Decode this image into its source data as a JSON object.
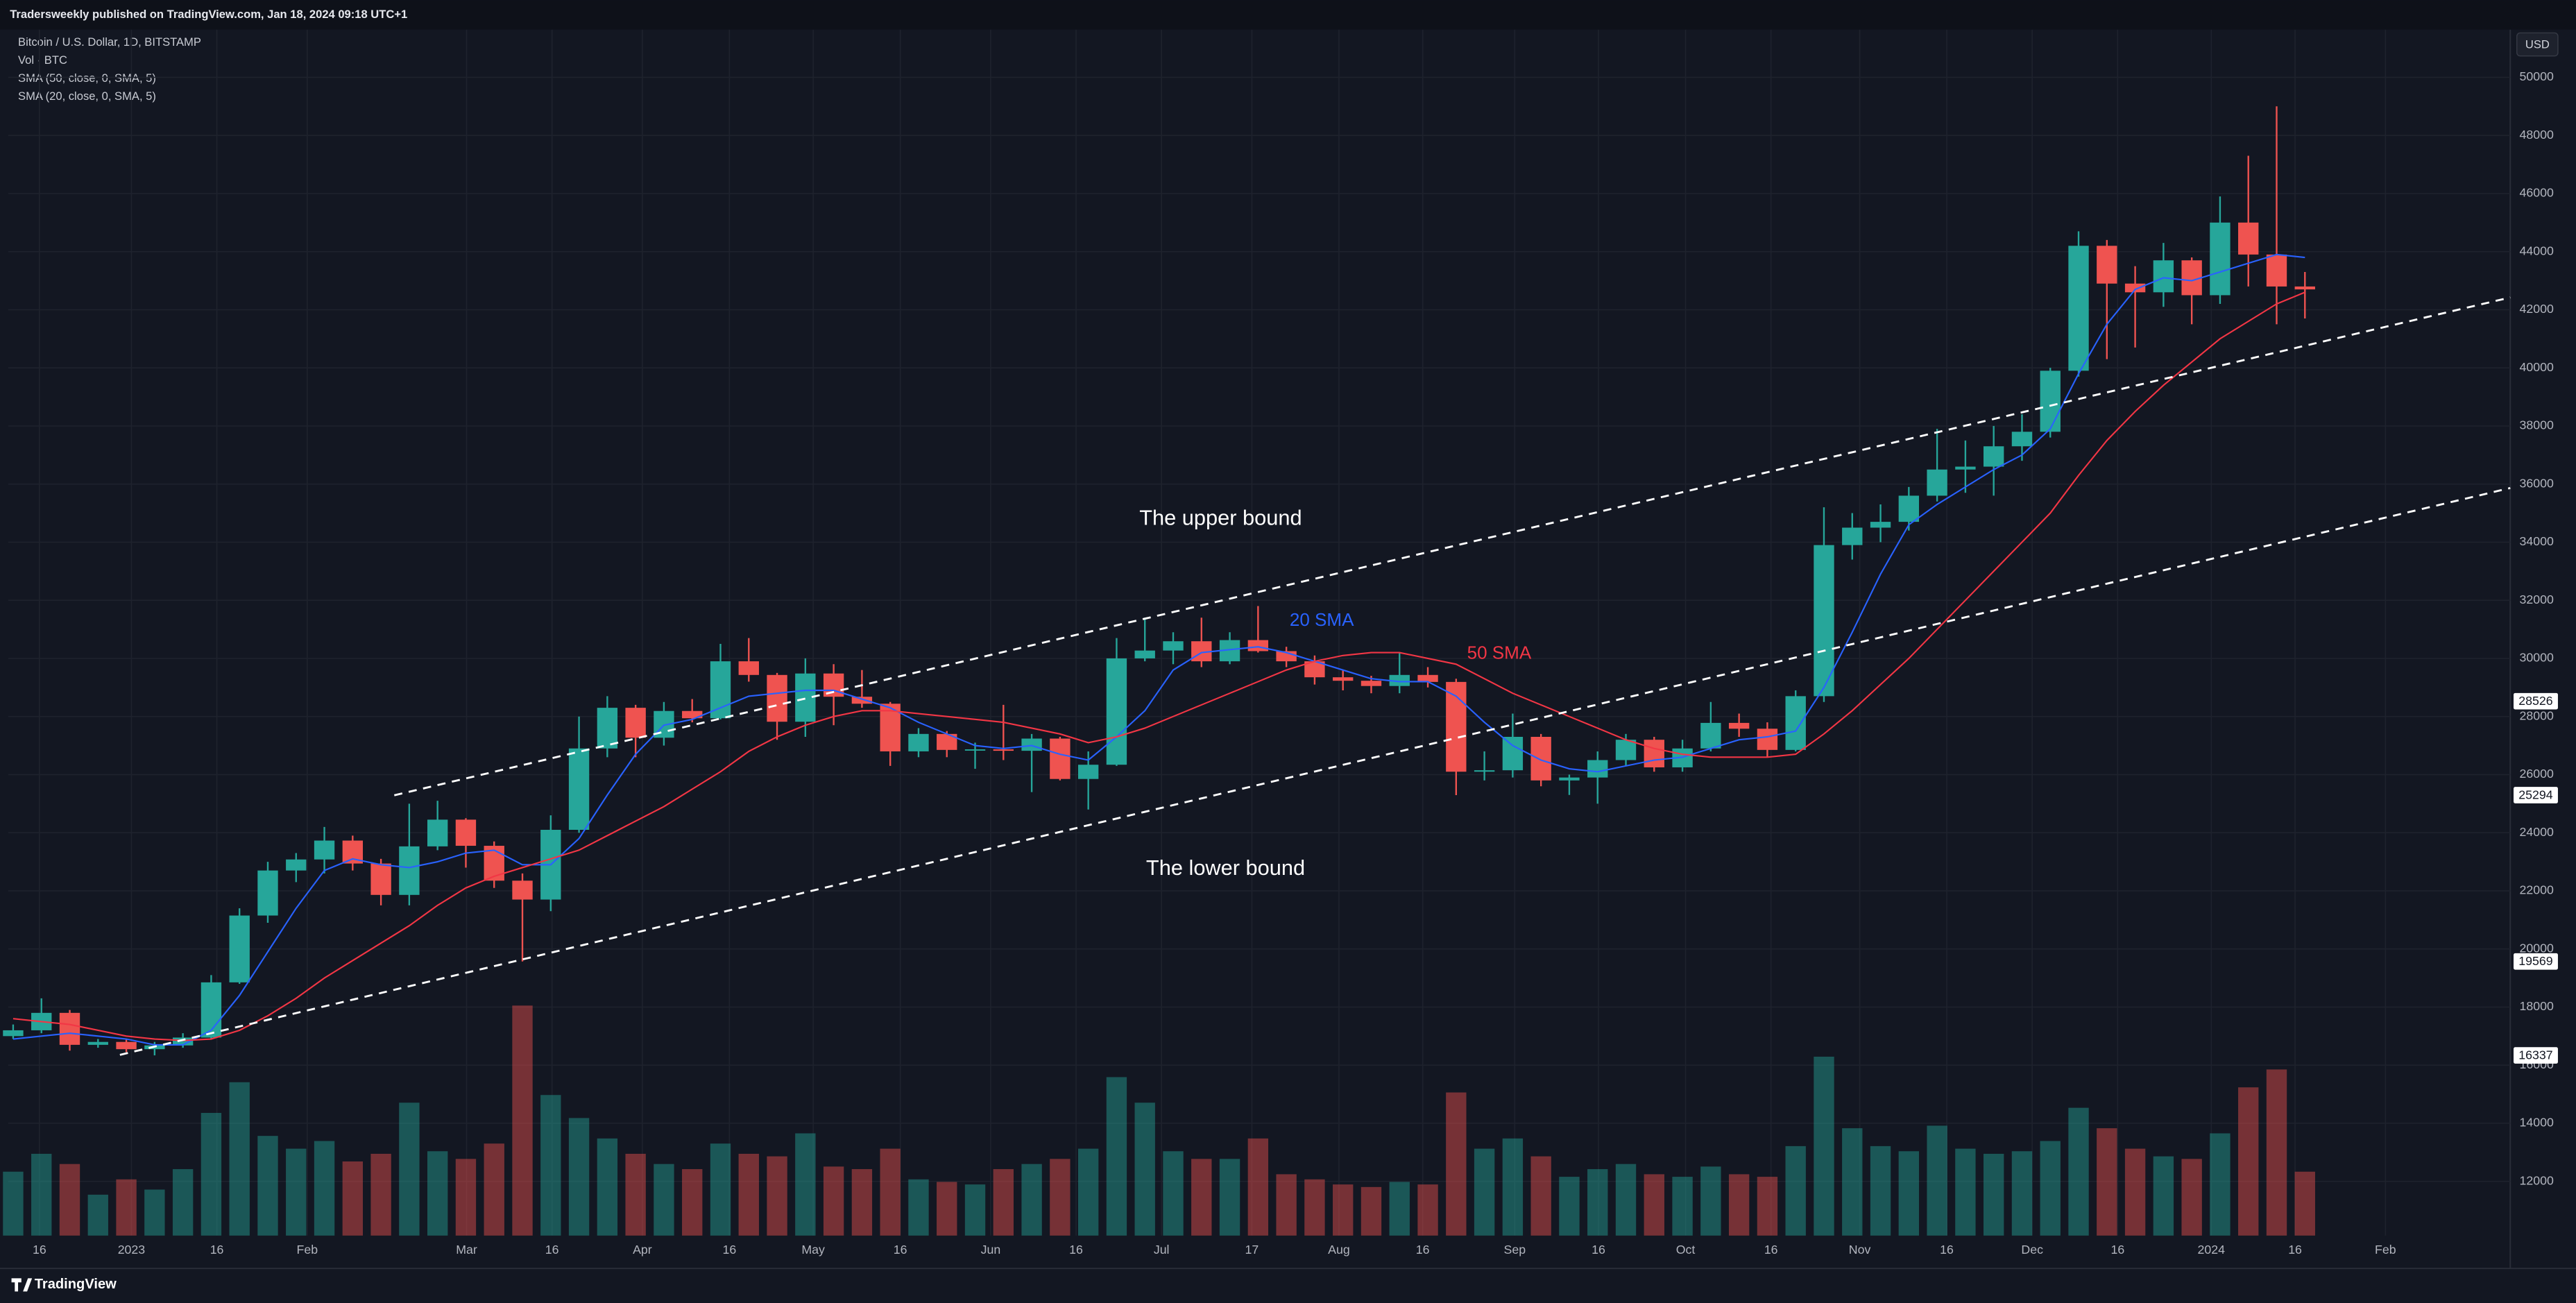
{
  "header": {
    "publisher": "Tradersweekly published on TradingView.com, Jan 18, 2024 09:18 UTC+1",
    "symbol": "Bitcoin / U.S. Dollar, 1D, BITSTAMP",
    "indicators": [
      "Vol · BTC",
      "SMA (50, close, 0, SMA, 5)",
      "SMA (20, close, 0, SMA, 5)"
    ]
  },
  "currency": "USD",
  "footer": "TradingView",
  "chart_data": {
    "type": "candlestick",
    "open": [
      17000,
      17200,
      17800,
      16700,
      16800,
      16550,
      16680,
      16950,
      18850,
      21150,
      22700,
      23080,
      23730,
      22940,
      21860,
      23530,
      24450,
      23550,
      22350,
      21700,
      24100,
      26900,
      28300,
      27270,
      28190,
      27940,
      29900,
      29430,
      27820,
      29480,
      28680,
      28440,
      26800,
      27400,
      26850,
      26870,
      26820,
      27240,
      25850,
      26340,
      30000,
      30270,
      30590,
      29900,
      30630,
      30250,
      29900,
      29350,
      29230,
      29050,
      29430,
      29190,
      26100,
      26150,
      27300,
      25800,
      25900,
      26500,
      27200,
      26250,
      26900,
      27780,
      27580,
      26850,
      28700,
      33900,
      34500,
      34700,
      35600,
      36500,
      36600,
      37300,
      37800,
      39900,
      44200,
      42900,
      42600,
      43700,
      42500,
      45000,
      43900,
      42800
    ],
    "high": [
      17400,
      18300,
      17900,
      16900,
      16900,
      16800,
      17100,
      19100,
      21400,
      23000,
      23300,
      24200,
      23900,
      23100,
      25000,
      25100,
      24500,
      23700,
      22600,
      24600,
      28000,
      28700,
      28400,
      28500,
      28600,
      30500,
      30700,
      29500,
      30000,
      29800,
      29600,
      28500,
      27600,
      27500,
      27100,
      28400,
      27400,
      27300,
      26800,
      30700,
      31400,
      30900,
      31400,
      30900,
      31800,
      30400,
      30100,
      29600,
      29400,
      30200,
      29700,
      29300,
      26800,
      28100,
      27400,
      26000,
      26800,
      27400,
      27300,
      27200,
      28500,
      28100,
      27800,
      28900,
      35200,
      35000,
      35300,
      35900,
      37900,
      37500,
      38000,
      38400,
      40000,
      44700,
      44400,
      43500,
      44300,
      43800,
      45900,
      47300,
      49000,
      43300
    ],
    "low": [
      16900,
      17100,
      16500,
      16600,
      16450,
      16337,
      16600,
      16900,
      18800,
      20900,
      22300,
      22600,
      22700,
      21500,
      21500,
      23400,
      22800,
      22100,
      19569,
      21300,
      24000,
      26600,
      26600,
      27000,
      27800,
      27900,
      29200,
      27200,
      27300,
      27700,
      28300,
      26300,
      26600,
      26600,
      26200,
      26500,
      25400,
      25800,
      24800,
      26300,
      29900,
      29800,
      29700,
      29800,
      30200,
      29700,
      29100,
      28900,
      28800,
      28800,
      29000,
      25294,
      25800,
      25900,
      25600,
      25300,
      25000,
      26300,
      26100,
      26100,
      26800,
      27300,
      26600,
      26800,
      28500,
      33400,
      34000,
      34400,
      35400,
      35700,
      35600,
      36800,
      37600,
      39700,
      40300,
      40700,
      42100,
      41500,
      42200,
      42800,
      41500,
      41700
    ],
    "close": [
      17200,
      17800,
      16700,
      16800,
      16550,
      16680,
      16950,
      18850,
      21150,
      22700,
      23080,
      23730,
      22940,
      21860,
      23530,
      24450,
      23550,
      22350,
      21700,
      24100,
      26900,
      28300,
      27270,
      28190,
      27940,
      29900,
      29430,
      27820,
      29480,
      28680,
      28440,
      26800,
      27400,
      26850,
      26870,
      26820,
      27240,
      25850,
      26340,
      30000,
      30270,
      30590,
      29900,
      30630,
      30250,
      29900,
      29350,
      29230,
      29050,
      29430,
      29190,
      26100,
      26150,
      27300,
      25800,
      25900,
      26500,
      27200,
      26250,
      26900,
      27780,
      27580,
      26850,
      28700,
      33900,
      34500,
      34700,
      35600,
      36500,
      36600,
      37300,
      37800,
      39900,
      44200,
      42900,
      42600,
      43700,
      42500,
      45000,
      43900,
      42800,
      42700
    ],
    "volume": [
      2500,
      3200,
      2800,
      1600,
      2200,
      1800,
      2600,
      4800,
      6000,
      3900,
      3400,
      3700,
      2900,
      3200,
      5200,
      3300,
      3000,
      3600,
      9000,
      5500,
      4600,
      3800,
      3200,
      2800,
      2600,
      3600,
      3200,
      3100,
      4000,
      2700,
      2600,
      3400,
      2200,
      2100,
      2000,
      2600,
      2800,
      3000,
      3400,
      6200,
      5200,
      3300,
      3000,
      3000,
      3800,
      2400,
      2200,
      2000,
      1900,
      2100,
      2000,
      5600,
      3400,
      3800,
      3100,
      2300,
      2600,
      2800,
      2400,
      2300,
      2700,
      2400,
      2300,
      3500,
      7000,
      4200,
      3500,
      3300,
      4300,
      3400,
      3200,
      3300,
      3700,
      5000,
      4200,
      3400,
      3100,
      3000,
      4000,
      5800,
      6500,
      2500
    ],
    "series": [
      {
        "name": "20 SMA",
        "color": "#2962ff",
        "values": [
          16900,
          17000,
          17100,
          17000,
          16900,
          16700,
          16700,
          17200,
          18400,
          19900,
          21400,
          22700,
          23100,
          22900,
          22800,
          23000,
          23300,
          23400,
          22900,
          22900,
          23800,
          25300,
          26700,
          27700,
          27900,
          28300,
          28700,
          28800,
          28900,
          28900,
          28600,
          28300,
          27800,
          27400,
          27000,
          26900,
          27000,
          26700,
          26500,
          27300,
          28200,
          29600,
          30200,
          30300,
          30400,
          30200,
          29900,
          29600,
          29300,
          29200,
          29200,
          28700,
          27800,
          27000,
          26500,
          26200,
          26100,
          26300,
          26500,
          26600,
          26900,
          27200,
          27300,
          27500,
          29000,
          30900,
          32900,
          34600,
          35300,
          35900,
          36500,
          37000,
          37900,
          39800,
          41500,
          42700,
          43100,
          43000,
          43300,
          43600,
          43900,
          43800
        ]
      },
      {
        "name": "50 SMA",
        "color": "#f23645",
        "values": [
          17600,
          17500,
          17400,
          17200,
          17000,
          16900,
          16850,
          16900,
          17200,
          17700,
          18300,
          19000,
          19600,
          20200,
          20800,
          21500,
          22100,
          22500,
          22800,
          23100,
          23400,
          23900,
          24400,
          24900,
          25500,
          26100,
          26800,
          27300,
          27700,
          28000,
          28200,
          28200,
          28100,
          28000,
          27900,
          27800,
          27600,
          27400,
          27100,
          27300,
          27600,
          28000,
          28400,
          28800,
          29200,
          29600,
          29900,
          30100,
          30200,
          30200,
          30000,
          29800,
          29300,
          28800,
          28400,
          28000,
          27600,
          27200,
          26900,
          26700,
          26600,
          26600,
          26600,
          26700,
          27400,
          28200,
          29100,
          30000,
          31000,
          32000,
          33000,
          34000,
          35000,
          36300,
          37500,
          38500,
          39400,
          40200,
          41000,
          41600,
          42200,
          42600
        ]
      }
    ],
    "up_color": "#26a69a",
    "down_color": "#ef5350",
    "ylim": [
      10135,
      51640
    ],
    "yticks": [
      12000,
      14000,
      16000,
      18000,
      20000,
      22000,
      24000,
      26000,
      28000,
      30000,
      32000,
      34000,
      36000,
      38000,
      40000,
      42000,
      44000,
      46000,
      48000,
      50000
    ],
    "x_labels": [
      "16",
      "2023",
      "16",
      "Feb",
      "Mar",
      "16",
      "Apr",
      "16",
      "May",
      "16",
      "Jun",
      "16",
      "Jul",
      "17",
      "Aug",
      "16",
      "Sep",
      "16",
      "Oct",
      "16",
      "Nov",
      "16",
      "Dec",
      "16",
      "2024",
      "16",
      "Feb"
    ],
    "price_labels": [
      28526,
      25294,
      19569,
      16337
    ],
    "annotations": [
      "The upper bound",
      "The lower bound"
    ],
    "grid": true
  }
}
